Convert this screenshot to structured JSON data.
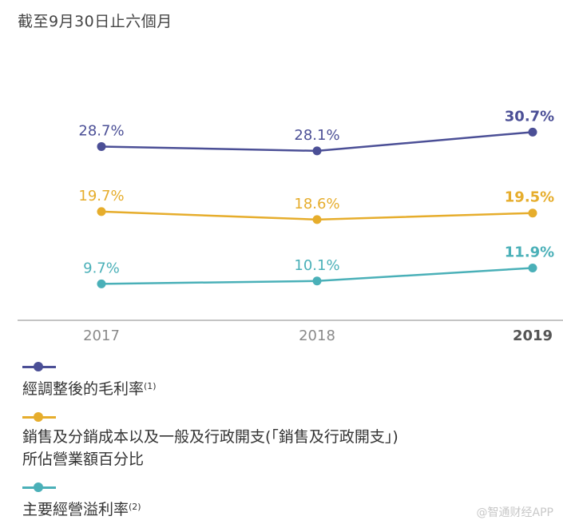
{
  "subtitle": "截至9月30日止六個月",
  "chart_data": {
    "type": "line",
    "categories": [
      "2017",
      "2018",
      "2019"
    ],
    "highlight_category": "2019",
    "ylim": [
      0,
      35
    ],
    "series": [
      {
        "name": "經調整後的毛利率",
        "note": "(1)",
        "color": "#4b4f96",
        "values": [
          28.7,
          28.1,
          30.7
        ],
        "labels": [
          "28.7%",
          "28.1%",
          "30.7%"
        ]
      },
      {
        "name": "銷售及分銷成本以及一般及行政開支(「銷售及行政開支」)所佔營業額百分比",
        "name_lines": [
          "銷售及分銷成本以及一般及行政開支(「銷售及行政開支」)",
          "所佔營業額百分比"
        ],
        "note": "",
        "color": "#e6ad2c",
        "values": [
          19.7,
          18.6,
          19.5
        ],
        "labels": [
          "19.7%",
          "18.6%",
          "19.5%"
        ]
      },
      {
        "name": "主要經營溢利率",
        "note": "(2)",
        "color": "#4ab0b8",
        "values": [
          9.7,
          10.1,
          11.9
        ],
        "labels": [
          "9.7%",
          "10.1%",
          "11.9%"
        ]
      }
    ]
  },
  "watermark": "@智通财经APP"
}
